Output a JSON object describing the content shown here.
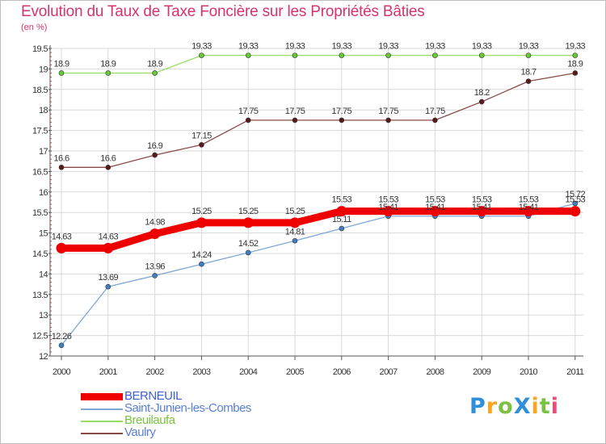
{
  "header": {
    "title": "Evolution du Taux de Taxe Foncière sur les Propriétés Bâties",
    "unit": "(en %)"
  },
  "colors": {
    "title": "#d6336c",
    "grid": "#d9d9d9",
    "axis": "#555555"
  },
  "chart_data": {
    "type": "line",
    "title": "Evolution du Taux de Taxe Foncière sur les Propriétés Bâties",
    "ylabel": "(en %)",
    "xlabel": "",
    "ylim": [
      12,
      19.5
    ],
    "grid": true,
    "categories": [
      "2000",
      "2001",
      "2002",
      "2003",
      "2004",
      "2005",
      "2006",
      "2007",
      "2008",
      "2009",
      "2010",
      "2011"
    ],
    "y_ticks": [
      "12",
      "12.5",
      "13",
      "13.5",
      "14",
      "14.5",
      "15",
      "15.5",
      "16",
      "16.5",
      "17",
      "17.5",
      "18",
      "18.5",
      "19",
      "19.5"
    ],
    "series": [
      {
        "name": "Breuilaufa",
        "color": "#99dd66",
        "marker": "#66cc33",
        "values": [
          18.9,
          18.9,
          18.9,
          19.33,
          19.33,
          19.33,
          19.33,
          19.33,
          19.33,
          19.33,
          19.33,
          19.33
        ],
        "labels": [
          "18.9",
          "18.9",
          "18.9",
          "19.33",
          "19.33",
          "19.33",
          "19.33",
          "19.33",
          "19.33",
          "19.33",
          "19.33",
          "19.33"
        ]
      },
      {
        "name": "Vaulry",
        "color": "#8b4a4a",
        "marker": "#5a1a1a",
        "values": [
          16.6,
          16.6,
          16.9,
          17.15,
          17.75,
          17.75,
          17.75,
          17.75,
          17.75,
          18.2,
          18.7,
          18.9
        ],
        "labels": [
          "16.6",
          "16.6",
          "16.9",
          "17.15",
          "17.75",
          "17.75",
          "17.75",
          "17.75",
          "17.75",
          "18.2",
          "18.7",
          "18.9"
        ]
      },
      {
        "name": "Saint-Junien-les-Combes",
        "color": "#7fa8d6",
        "marker": "#3f7fc4",
        "values": [
          12.26,
          13.69,
          13.96,
          14.24,
          14.52,
          14.81,
          15.11,
          15.41,
          15.41,
          15.41,
          15.41,
          15.72
        ],
        "labels": [
          "12.26",
          "13.69",
          "13.96",
          "14.24",
          "14.52",
          "14.81",
          "15.11",
          "15.41",
          "15.41",
          "15.41",
          "15.41",
          "15.72"
        ]
      },
      {
        "name": "BERNEUIL",
        "color": "#ee0000",
        "marker": "#ee0000",
        "bold": true,
        "values": [
          14.63,
          14.63,
          14.98,
          15.25,
          15.25,
          15.25,
          15.53,
          15.53,
          15.53,
          15.53,
          15.53,
          15.53
        ],
        "labels": [
          "14.63",
          "14.63",
          "14.98",
          "15.25",
          "15.25",
          "15.25",
          "15.53",
          "15.53",
          "15.53",
          "15.53",
          "15.53",
          "15.53"
        ]
      }
    ]
  },
  "legend": {
    "items": [
      {
        "label": "BERNEUIL",
        "color": "#ee0000"
      },
      {
        "label": "Saint-Junien-les-Combes",
        "color": "#7fa8d6"
      },
      {
        "label": "Breuilaufa",
        "color": "#99dd66"
      },
      {
        "label": "Vaulry",
        "color": "#8b4a4a"
      }
    ]
  },
  "logo": {
    "text": "Proxiti",
    "letters": [
      {
        "ch": "P",
        "color": "#2f8fd8"
      },
      {
        "ch": "r",
        "color": "#f5a623"
      },
      {
        "ch": "o",
        "color": "#7cc242"
      },
      {
        "ch": "X",
        "color": "#2f8fd8"
      },
      {
        "ch": "i",
        "color": "#f5a623"
      },
      {
        "ch": "t",
        "color": "#7cc242"
      },
      {
        "ch": "i",
        "color": "#e94e77"
      }
    ]
  }
}
